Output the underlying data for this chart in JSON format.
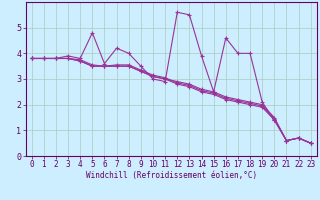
{
  "title": "",
  "xlabel": "Windchill (Refroidissement éolien,°C)",
  "ylabel": "",
  "bg_color": "#cceeff",
  "grid_color": "#aaccbb",
  "line_color": "#993399",
  "xlim": [
    -0.5,
    23.5
  ],
  "ylim": [
    0,
    6
  ],
  "xticks": [
    0,
    1,
    2,
    3,
    4,
    5,
    6,
    7,
    8,
    9,
    10,
    11,
    12,
    13,
    14,
    15,
    16,
    17,
    18,
    19,
    20,
    21,
    22,
    23
  ],
  "yticks": [
    0,
    1,
    2,
    3,
    4,
    5
  ],
  "series": [
    [
      3.8,
      3.8,
      3.8,
      3.9,
      3.8,
      4.8,
      3.6,
      4.2,
      4.0,
      3.5,
      3.0,
      2.9,
      5.6,
      5.5,
      3.9,
      2.5,
      4.6,
      4.0,
      4.0,
      2.1,
      1.4,
      0.6,
      0.7,
      0.5
    ],
    [
      3.8,
      3.8,
      3.8,
      3.8,
      3.7,
      3.5,
      3.5,
      3.5,
      3.5,
      3.3,
      3.1,
      3.0,
      2.9,
      2.8,
      2.6,
      2.5,
      2.3,
      2.2,
      2.1,
      2.0,
      1.5,
      0.6,
      0.7,
      0.5
    ],
    [
      3.8,
      3.8,
      3.8,
      3.8,
      3.7,
      3.5,
      3.5,
      3.5,
      3.5,
      3.3,
      3.1,
      3.0,
      2.8,
      2.7,
      2.5,
      2.4,
      2.2,
      2.1,
      2.0,
      1.9,
      1.4,
      0.6,
      0.7,
      0.5
    ],
    [
      3.8,
      3.8,
      3.8,
      3.8,
      3.75,
      3.55,
      3.5,
      3.55,
      3.55,
      3.35,
      3.15,
      3.05,
      2.85,
      2.75,
      2.55,
      2.45,
      2.25,
      2.15,
      2.05,
      1.95,
      1.45,
      0.6,
      0.7,
      0.5
    ]
  ],
  "tick_fontsize": 5.5,
  "xlabel_fontsize": 5.5,
  "tick_color": "#660066",
  "spine_color": "#660066"
}
